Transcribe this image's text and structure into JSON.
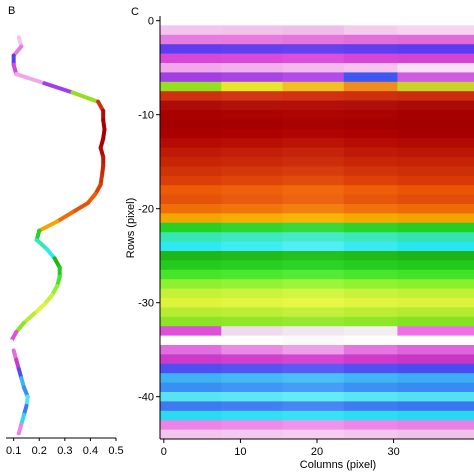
{
  "chart_data": [
    {
      "panel_label": "B",
      "type": "line",
      "xlim": [
        0.07,
        0.5
      ],
      "ylim": [
        0,
        -44.5
      ],
      "x_ticks": [
        "0.1",
        "0.2",
        "0.3",
        "0.4",
        "0.5"
      ],
      "x_tick_values": [
        0.1,
        0.2,
        0.3,
        0.4,
        0.5
      ],
      "profile_row": [
        0,
        1,
        2,
        3,
        4,
        5,
        6,
        7,
        8,
        9,
        10,
        11,
        12,
        13,
        14,
        15,
        16,
        17,
        18,
        19,
        20,
        21,
        22,
        23,
        24,
        25,
        26,
        27,
        28,
        29,
        30,
        31,
        32,
        33,
        34,
        35,
        36,
        37,
        38,
        39,
        40,
        41,
        42,
        43,
        44
      ],
      "profile_value": [
        0.11,
        0.12,
        0.13,
        0.1,
        0.1,
        0.11,
        0.22,
        0.33,
        0.43,
        0.45,
        0.45,
        0.455,
        0.45,
        0.44,
        0.45,
        0.45,
        0.445,
        0.44,
        0.42,
        0.39,
        0.33,
        0.27,
        0.2,
        0.19,
        0.23,
        0.26,
        0.28,
        0.28,
        0.27,
        0.25,
        0.22,
        0.18,
        0.14,
        0.11,
        0.09,
        0.1,
        0.11,
        0.12,
        0.13,
        0.14,
        0.155,
        0.15,
        0.14,
        0.13,
        0.12
      ]
    },
    {
      "panel_label": "C",
      "type": "heatmap",
      "xlabel": "Columns (pixel)",
      "ylabel": "Rows (pixel)",
      "x_ticks": [
        "0",
        "10",
        "20",
        "30"
      ],
      "x_tick_values": [
        0,
        10,
        20,
        30
      ],
      "y_ticks": [
        "0",
        "-10",
        "-20",
        "-30",
        "-40"
      ],
      "y_tick_values": [
        0,
        -10,
        -20,
        -30,
        -40
      ],
      "xlim": [
        -0.5,
        40.5
      ],
      "ylim": [
        0.5,
        -44.5
      ],
      "columns": 41,
      "rows": 45,
      "column_blocks_start": [
        0,
        8,
        16,
        24,
        31
      ],
      "row_colors": [
        [
          "#ffffff",
          "#ffffff",
          "#ffffff",
          "#ffffff",
          "#ffffff"
        ],
        [
          "#f3c5ee",
          "#f2c1ec",
          "#f0bdea",
          "#f4caee",
          "#f7d2f1"
        ],
        [
          "#e77ce0",
          "#e67ade",
          "#e574dc",
          "#e26ed9",
          "#e06ad6"
        ],
        [
          "#5d3df0",
          "#6140ef",
          "#6442ef",
          "#5f3ff0",
          "#5a3cf1"
        ],
        [
          "#d848d8",
          "#da4ad9",
          "#dc4fda",
          "#d744d6",
          "#d443d4"
        ],
        [
          "#f0a8ea",
          "#f2b0ec",
          "#f4b9ee",
          "#f6c2f0",
          "#fae0f7"
        ],
        [
          "#a23ee6",
          "#a743e7",
          "#b24be9",
          "#3c57f2",
          "#cf5ce0"
        ],
        [
          "#94e01f",
          "#e6e62a",
          "#f0bf26",
          "#ee8d1d",
          "#c8d22a"
        ],
        [
          "#d03010",
          "#d63515",
          "#d33212",
          "#cf2e0f",
          "#cc2b0d"
        ],
        [
          "#ad0c0a",
          "#b2100b",
          "#b40f0a",
          "#b00e0a",
          "#a90b09"
        ],
        [
          "#a90000",
          "#ab0302",
          "#ae0503",
          "#aa0302",
          "#a60000"
        ],
        [
          "#a50000",
          "#a60100",
          "#a80302",
          "#a50100",
          "#a30000"
        ],
        [
          "#ab0000",
          "#ad0201",
          "#b10503",
          "#ad0201",
          "#a80000"
        ],
        [
          "#b50b04",
          "#b80e06",
          "#bc1307",
          "#b70c05",
          "#b20903"
        ],
        [
          "#bf1a05",
          "#c21e08",
          "#c5240b",
          "#c01b07",
          "#bc1605"
        ],
        [
          "#c82406",
          "#cb2808",
          "#ce2d0b",
          "#c92507",
          "#c52206"
        ],
        [
          "#d03209",
          "#d3370c",
          "#d63c0e",
          "#d1340a",
          "#cd2f08"
        ],
        [
          "#dd3d06",
          "#e04409",
          "#e34b0c",
          "#de4007",
          "#da3905"
        ],
        [
          "#ee5a06",
          "#f0600a",
          "#f2680d",
          "#ef5d07",
          "#ec5505"
        ],
        [
          "#e4520c",
          "#e85a0f",
          "#ec6313",
          "#e6560d",
          "#e14e0b"
        ],
        [
          "#ee6e08",
          "#f0760b",
          "#f2800f",
          "#f0720a",
          "#ed6a07"
        ],
        [
          "#f4a600",
          "#f6ad04",
          "#f8b508",
          "#f5aa02",
          "#f3a200"
        ],
        [
          "#26d126",
          "#2ed62e",
          "#35db3a",
          "#2bd42b",
          "#22cf22"
        ],
        [
          "#37e6b5",
          "#3ee8c0",
          "#46eac9",
          "#3ce7bb",
          "#34e4b0"
        ],
        [
          "#2fe8f2",
          "#40ecf4",
          "#50eff5",
          "#3aeaf3",
          "#26e6f0"
        ],
        [
          "#1db817",
          "#21bc1b",
          "#24c01f",
          "#20bb1a",
          "#1cb515"
        ],
        [
          "#23cc1c",
          "#27d020",
          "#2bd424",
          "#25ce1e",
          "#21ca1a"
        ],
        [
          "#46e52a",
          "#4ce830",
          "#55ea36",
          "#49e62d",
          "#42e228"
        ],
        [
          "#8ef031",
          "#94f236",
          "#9cf43b",
          "#91f133",
          "#8aef2f"
        ],
        [
          "#c5f238",
          "#caf43c",
          "#d1f641",
          "#c8f33a",
          "#c1f035"
        ],
        [
          "#dff33d",
          "#e3f541",
          "#e8f746",
          "#e1f43f",
          "#dcf23b"
        ],
        [
          "#b8ec32",
          "#bdee36",
          "#c3f03b",
          "#bbed34",
          "#b4ea30"
        ],
        [
          "#8ae525",
          "#90e72a",
          "#97e92f",
          "#8de627",
          "#86e322"
        ],
        [
          "#df4fdc",
          "#f1d9f0",
          "#f2e6f1",
          "#f4eef3",
          "#ee6fe8"
        ],
        [
          "#ffffff",
          "#ffffff",
          "#fafafa",
          "#ffffff",
          "#ffffff"
        ],
        [
          "#e06ee0",
          "#e88ae6",
          "#ef9fea",
          "#e575e1",
          "#dd64da"
        ],
        [
          "#cc3ac9",
          "#d040cd",
          "#d446d1",
          "#cd3bca",
          "#c836c5"
        ],
        [
          "#4e4ff3",
          "#5454f3",
          "#5a5af4",
          "#5050f3",
          "#4b4bf2"
        ],
        [
          "#3fb2f4",
          "#44baf5",
          "#4ac1f6",
          "#40b6f4",
          "#3baef3"
        ],
        [
          "#3a8ff3",
          "#3f96f4",
          "#459df5",
          "#3c92f3",
          "#378bf2"
        ],
        [
          "#56e4f1",
          "#5be8f3",
          "#62ecf5",
          "#58e6f2",
          "#52e1ef"
        ],
        [
          "#3e79f2",
          "#437ff3",
          "#4985f4",
          "#407bf2",
          "#3b75f1"
        ],
        [
          "#2cdaf0",
          "#31def2",
          "#37e2f4",
          "#2edcf1",
          "#29d7ee"
        ],
        [
          "#ea84e6",
          "#ec8ce8",
          "#ee94ea",
          "#eb88e7",
          "#e880e4"
        ],
        [
          "#f1c5ee",
          "#f2c9ef",
          "#f4cdf0",
          "#f2c7ee",
          "#efc2ec"
        ]
      ]
    }
  ]
}
